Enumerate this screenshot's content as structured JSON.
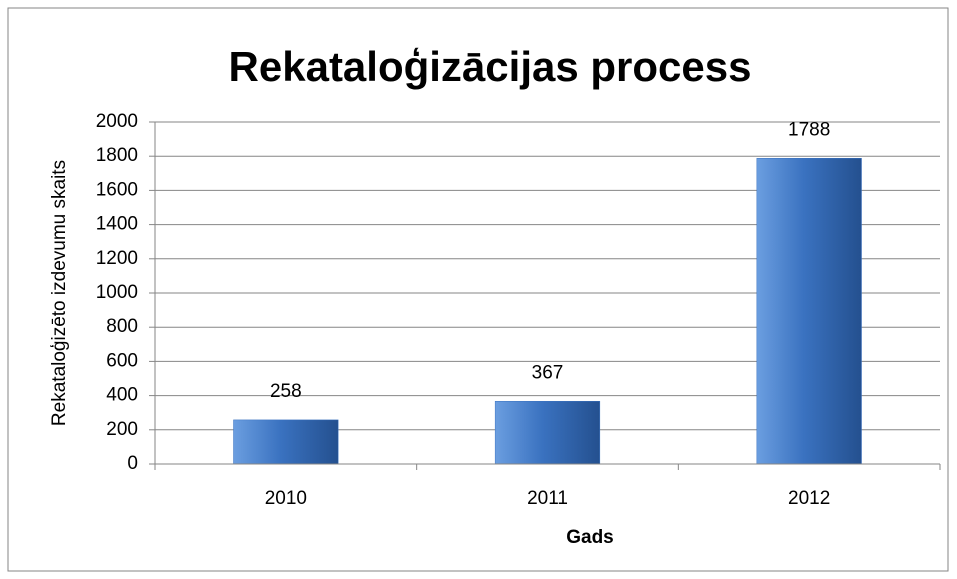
{
  "chart_data": {
    "type": "bar",
    "title": "Rekataloģizācijas process",
    "x_label": "Gads",
    "y_label": "Rekataloģizēto izdevumu skaits",
    "categories": [
      "2010",
      "2011",
      "2012"
    ],
    "values": [
      258,
      367,
      1788
    ],
    "color": "#3a72c0",
    "ylim": [
      0,
      2000
    ],
    "yticks": [
      0,
      200,
      400,
      600,
      800,
      1000,
      1200,
      1400,
      1600,
      1800,
      2000
    ],
    "grid": true
  }
}
